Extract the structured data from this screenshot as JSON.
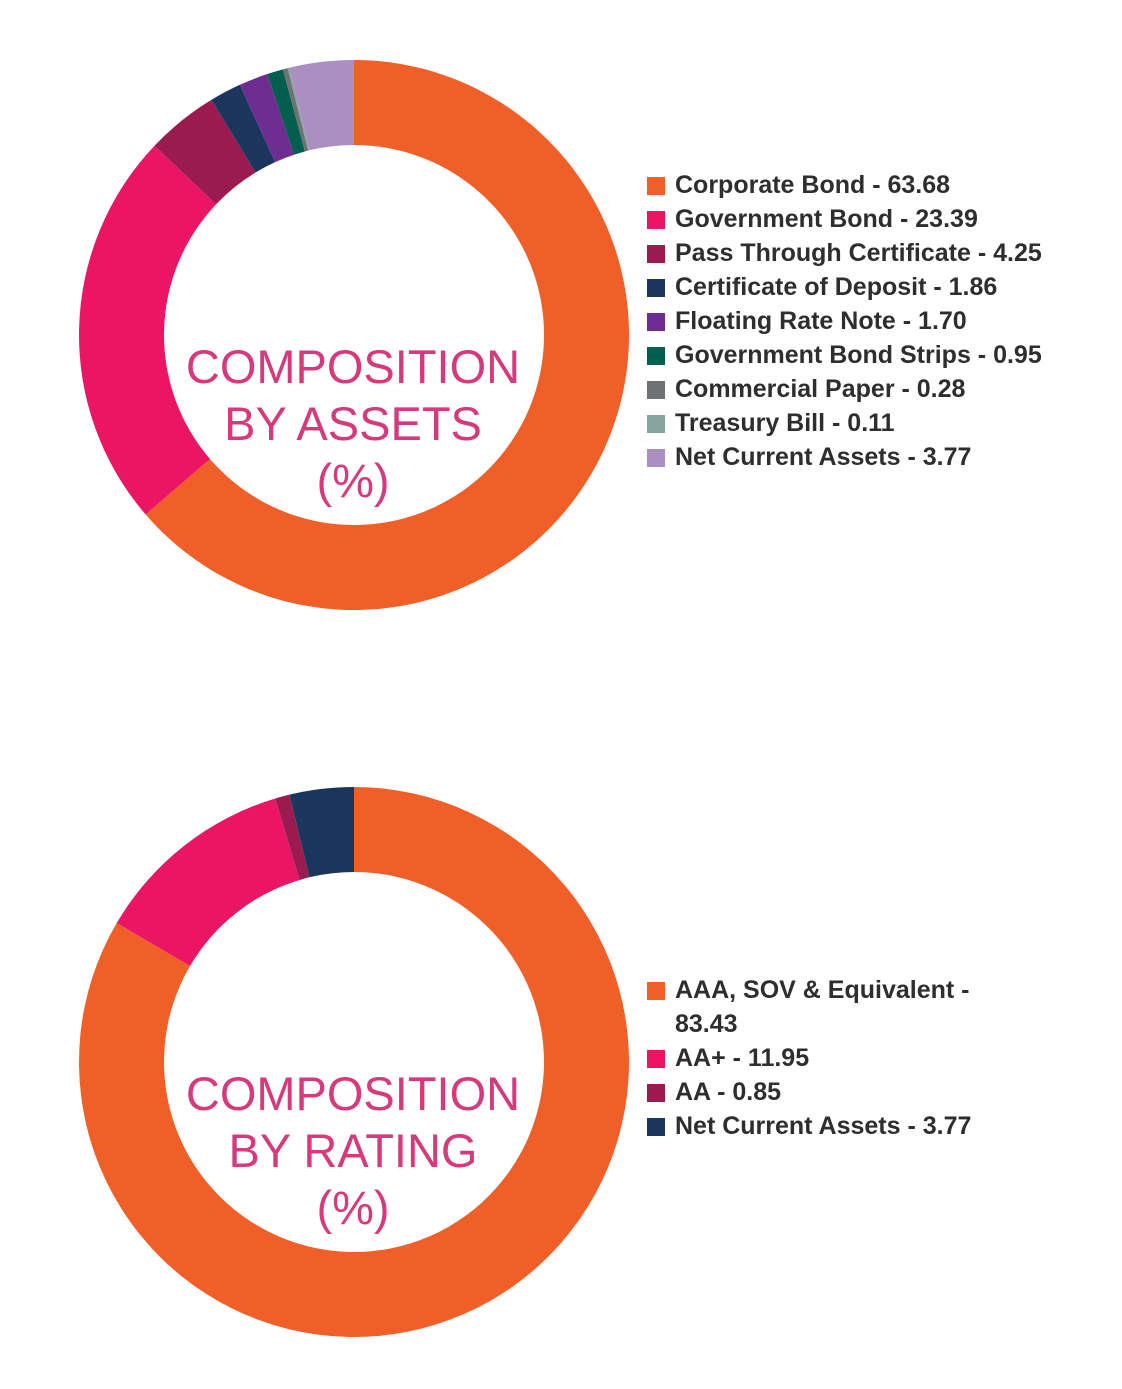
{
  "chart_data": [
    {
      "type": "pie",
      "subtype": "donut",
      "center_label": [
        "COMPOSITION",
        "BY ASSETS",
        "(%)"
      ],
      "categories": [
        "Corporate Bond",
        "Government Bond",
        "Pass Through Certificate",
        "Certificate of Deposit",
        "Floating Rate Note",
        "Government Bond Strips",
        "Commercial Paper",
        "Treasury Bill",
        "Net Current Assets"
      ],
      "values": [
        63.68,
        23.39,
        4.25,
        1.86,
        1.7,
        0.95,
        0.28,
        0.11,
        3.77
      ],
      "legend_labels": [
        "Corporate Bond - 63.68",
        "Government Bond - 23.39",
        "Pass Through Certificate - 4.25",
        "Certificate of Deposit - 1.86",
        "Floating Rate Note - 1.70",
        "Government Bond Strips - 0.95",
        "Commercial Paper - 0.28",
        "Treasury Bill - 0.11",
        "Net Current Assets - 3.77"
      ],
      "colors": [
        "#f15f28",
        "#eb1566",
        "#9a1b4f",
        "#1b365d",
        "#6f2c91",
        "#005f4e",
        "#6f7172",
        "#86a59c",
        "#ac8fc2"
      ],
      "legend_placement": "right"
    },
    {
      "type": "pie",
      "subtype": "donut",
      "center_label": [
        "COMPOSITION",
        "BY RATING",
        "(%)"
      ],
      "categories": [
        "AAA, SOV & Equivalent",
        "AA+",
        "AA",
        "Net Current Assets"
      ],
      "values": [
        83.43,
        11.95,
        0.85,
        3.77
      ],
      "legend_labels": [
        "AAA, SOV & Equivalent - 83.43",
        "AA+ - 11.95",
        "AA - 0.85",
        "Net Current Assets - 3.77"
      ],
      "colors": [
        "#f15f28",
        "#eb1566",
        "#9a1b4f",
        "#1b365d"
      ],
      "legend_placement": "right"
    }
  ]
}
